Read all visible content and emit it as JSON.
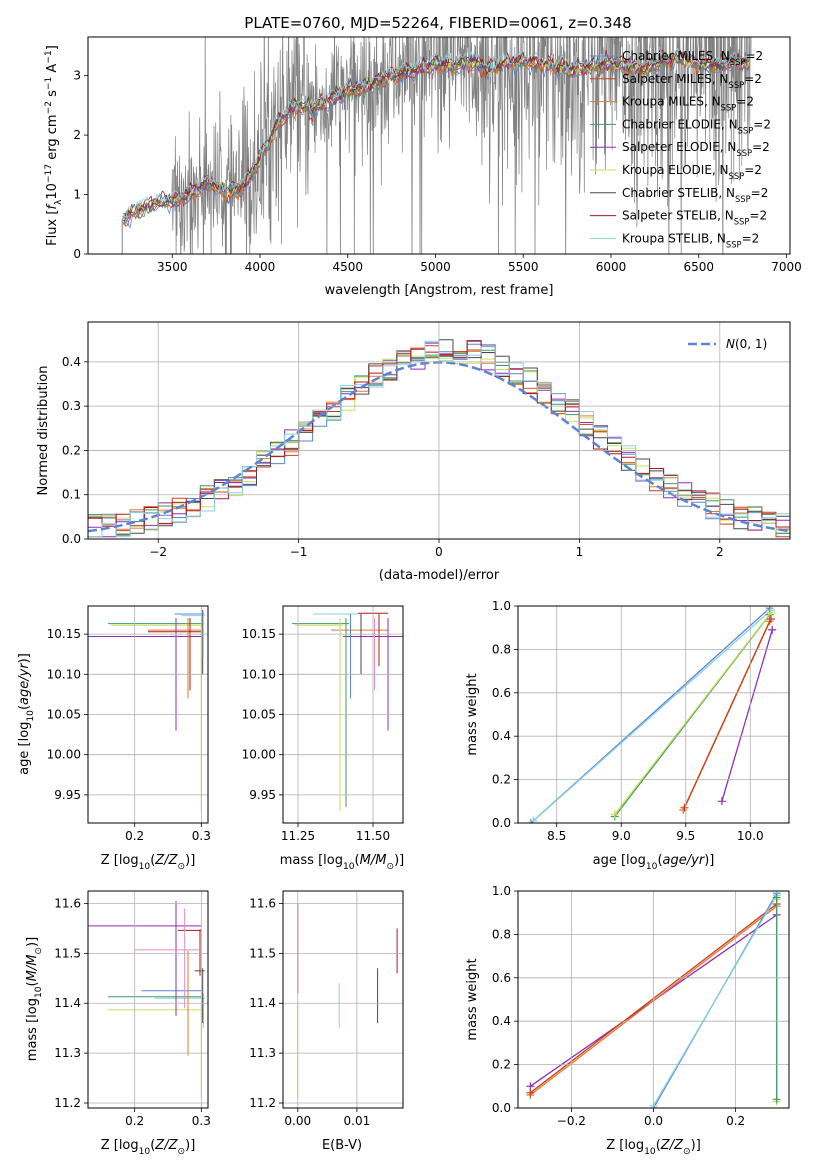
{
  "title": "PLATE=0760, MJD=52264, FIBERID=0061, z=0.348",
  "colors": {
    "chabrier_miles": "#5b84d4",
    "salpeter_miles": "#c8401e",
    "kroupa_miles": "#e27a2e",
    "chabrier_elodie": "#3f9a66",
    "salpeter_elodie": "#8e2fb8",
    "kroupa_elodie": "#c7e05b",
    "chabrier_stelib": "#4a4a4a",
    "salpeter_stelib": "#b01818",
    "kroupa_stelib": "#86d2e3",
    "gaussian": "#5b84d4",
    "data": "#808080"
  },
  "chart_data": [
    {
      "id": "spectrum",
      "type": "line",
      "title": "PLATE=0760, MJD=52264, FIBERID=0061, z=0.348",
      "xlabel": "wavelength [Angstrom, rest frame]",
      "ylabel": "Flux [f_λ 10^-17 erg cm^-2 s^-1 A^-1]",
      "xlim": [
        3020,
        7020
      ],
      "ylim": [
        0,
        3.65
      ],
      "xticks": [
        3500,
        4000,
        4500,
        5000,
        5500,
        6000,
        6500,
        7000
      ],
      "yticks": [
        0,
        1,
        2,
        3
      ],
      "legend_position": "top-right",
      "legend": [
        {
          "prefix": "Chabrier MILES, N",
          "sub": "SSP",
          "suffix": "=2",
          "color_key": "chabrier_miles"
        },
        {
          "prefix": "Salpeter MILES, N",
          "sub": "SSP",
          "suffix": "=2",
          "color_key": "salpeter_miles"
        },
        {
          "prefix": "Kroupa MILES, N",
          "sub": "SSP",
          "suffix": "=2",
          "color_key": "kroupa_miles"
        },
        {
          "prefix": "Chabrier ELODIE, N",
          "sub": "SSP",
          "suffix": "=2",
          "color_key": "chabrier_elodie"
        },
        {
          "prefix": "Salpeter ELODIE, N",
          "sub": "SSP",
          "suffix": "=2",
          "color_key": "salpeter_elodie"
        },
        {
          "prefix": "Kroupa ELODIE, N",
          "sub": "SSP",
          "suffix": "=2",
          "color_key": "kroupa_elodie"
        },
        {
          "prefix": "Chabrier STELIB, N",
          "sub": "SSP",
          "suffix": "=2",
          "color_key": "chabrier_stelib"
        },
        {
          "prefix": "Salpeter STELIB, N",
          "sub": "SSP",
          "suffix": "=2",
          "color_key": "salpeter_stelib"
        },
        {
          "prefix": "Kroupa STELIB, N",
          "sub": "SSP",
          "suffix": "=2",
          "color_key": "kroupa_stelib"
        }
      ],
      "continuum": {
        "wavelength": [
          3200,
          3300,
          3400,
          3500,
          3600,
          3700,
          3800,
          3900,
          4000,
          4100,
          4200,
          4300,
          4400,
          4500,
          4600,
          4700,
          4800,
          4900,
          5000,
          5100,
          5200,
          5300,
          5400,
          5500,
          5600,
          5700,
          5800,
          5900,
          6000,
          6100,
          6200,
          6300,
          6400,
          6500,
          6600,
          6700,
          6800
        ],
        "flux": [
          0.55,
          0.75,
          0.85,
          0.9,
          1.0,
          1.2,
          1.05,
          1.1,
          1.6,
          2.2,
          2.5,
          2.45,
          2.6,
          2.75,
          2.8,
          2.95,
          3.05,
          3.1,
          3.2,
          3.15,
          3.25,
          3.1,
          3.2,
          3.25,
          3.2,
          3.15,
          3.1,
          3.15,
          3.2,
          3.15,
          3.1,
          3.25,
          3.3,
          3.2,
          3.15,
          3.25,
          3.2
        ]
      }
    },
    {
      "id": "residuals",
      "type": "histogram",
      "xlabel": "(data-model)/error",
      "ylabel": "Normed distribution",
      "xlim": [
        -2.5,
        2.5
      ],
      "ylim": [
        0,
        0.49
      ],
      "xticks": [
        -2,
        -1,
        0,
        1,
        2
      ],
      "yticks": [
        0.0,
        0.1,
        0.2,
        0.3,
        0.4
      ],
      "legend_position": "top-right",
      "gaussian_label": "N(0,1)",
      "bin_width": 0.1,
      "bin_start": -2.5
    },
    {
      "id": "age_vs_Z",
      "type": "scatter",
      "xlabel": "Z [log10(Z/Z⊙)]",
      "ylabel": "age [log10(age/yr)]",
      "xlim": [
        0.13,
        0.31
      ],
      "ylim": [
        9.915,
        10.185
      ],
      "xticks": [
        0.2,
        0.3
      ],
      "yticks": [
        9.95,
        10.0,
        10.05,
        10.1,
        10.15
      ]
    },
    {
      "id": "age_vs_mass",
      "type": "scatter",
      "xlabel": "mass [log10(M/M⊙)]",
      "ylabel": "",
      "xlim": [
        11.2,
        11.6
      ],
      "ylim": [
        9.915,
        10.185
      ],
      "xticks": [
        11.25,
        11.5
      ],
      "yticks": [
        9.95,
        10.0,
        10.05,
        10.1,
        10.15
      ]
    },
    {
      "id": "weight_vs_age",
      "type": "line",
      "xlabel": "age [log10(age/yr)]",
      "ylabel": "mass weight",
      "xlim": [
        8.2,
        10.3
      ],
      "ylim": [
        0,
        1
      ],
      "xticks": [
        8.5,
        9.0,
        9.5,
        10.0
      ],
      "yticks": [
        0.0,
        0.2,
        0.4,
        0.6,
        0.8,
        1.0
      ],
      "series": [
        {
          "color_key": "chabrier_miles",
          "x": [
            8.3,
            10.15
          ],
          "y": [
            0.0,
            0.99
          ]
        },
        {
          "color_key": "kroupa_stelib",
          "x": [
            8.32,
            10.16
          ],
          "y": [
            0.01,
            0.98
          ]
        },
        {
          "color_key": "chabrier_elodie",
          "x": [
            8.95,
            10.15
          ],
          "y": [
            0.03,
            0.96
          ]
        },
        {
          "color_key": "kroupa_elodie",
          "x": [
            8.95,
            10.16
          ],
          "y": [
            0.04,
            0.97
          ]
        },
        {
          "color_key": "kroupa_miles",
          "x": [
            9.48,
            10.15
          ],
          "y": [
            0.06,
            0.93
          ]
        },
        {
          "color_key": "salpeter_miles",
          "x": [
            9.49,
            10.16
          ],
          "y": [
            0.07,
            0.94
          ]
        },
        {
          "color_key": "salpeter_elodie",
          "x": [
            9.78,
            10.17
          ],
          "y": [
            0.1,
            0.89
          ]
        }
      ]
    },
    {
      "id": "mass_vs_Z",
      "type": "scatter",
      "xlabel": "Z [log10(Z/Z⊙)]",
      "ylabel": "mass [log10(M/M⊙)]",
      "xlim": [
        0.13,
        0.31
      ],
      "ylim": [
        11.19,
        11.625
      ],
      "xticks": [
        0.2,
        0.3
      ],
      "yticks": [
        11.2,
        11.3,
        11.4,
        11.5,
        11.6
      ]
    },
    {
      "id": "mass_vs_ebv",
      "type": "scatter",
      "xlabel": "E(B-V)",
      "ylabel": "",
      "xlim": [
        -0.0025,
        0.0178
      ],
      "ylim": [
        11.19,
        11.625
      ],
      "xticks": [
        0.0,
        0.01
      ],
      "yticks": [
        11.2,
        11.3,
        11.4,
        11.5,
        11.6
      ],
      "points": [
        {
          "color_key": "salpeter_elodie",
          "x": 0.0,
          "ylo": 11.42,
          "yhi": 11.6
        },
        {
          "color_key": "kroupa_elodie",
          "x": 0.0,
          "ylo": 11.21,
          "yhi": 11.4
        },
        {
          "color_key": "kroupa_stelib",
          "x": 0.007,
          "ylo": 11.35,
          "yhi": 11.44
        },
        {
          "color_key": "chabrier_stelib",
          "x": 0.0135,
          "ylo": 11.36,
          "yhi": 11.47
        },
        {
          "color_key": "salpeter_stelib",
          "x": 0.0168,
          "ylo": 11.46,
          "yhi": 11.55
        }
      ]
    },
    {
      "id": "weight_vs_Z",
      "type": "line",
      "xlabel": "Z [log10(Z/Z⊙)]",
      "ylabel": "mass weight",
      "xlim": [
        -0.33,
        0.33
      ],
      "ylim": [
        0,
        1
      ],
      "xticks": [
        -0.2,
        0.0,
        0.2
      ],
      "yticks": [
        0.0,
        0.2,
        0.4,
        0.6,
        0.8,
        1.0
      ],
      "series": [
        {
          "color_key": "salpeter_elodie",
          "x": [
            -0.3,
            0.3
          ],
          "y": [
            0.1,
            0.89
          ]
        },
        {
          "color_key": "kroupa_miles",
          "x": [
            -0.3,
            0.3
          ],
          "y": [
            0.06,
            0.93
          ]
        },
        {
          "color_key": "salpeter_miles",
          "x": [
            -0.3,
            0.3
          ],
          "y": [
            0.07,
            0.94
          ]
        },
        {
          "color_key": "chabrier_miles",
          "x": [
            0.0,
            0.3
          ],
          "y": [
            0.0,
            0.99
          ]
        },
        {
          "color_key": "kroupa_stelib",
          "x": [
            0.0,
            0.3
          ],
          "y": [
            0.01,
            0.98
          ]
        },
        {
          "color_key": "kroupa_elodie",
          "x": [
            0.3,
            0.3
          ],
          "y": [
            0.03,
            0.96
          ]
        },
        {
          "color_key": "chabrier_elodie",
          "x": [
            0.3,
            0.3
          ],
          "y": [
            0.04,
            0.97
          ]
        }
      ]
    }
  ]
}
